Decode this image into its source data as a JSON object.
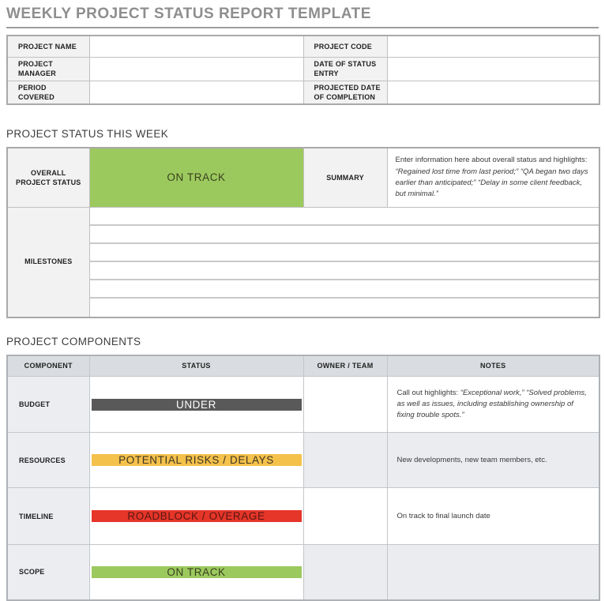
{
  "page": {
    "title": "WEEKLY PROJECT STATUS REPORT TEMPLATE"
  },
  "info": {
    "fields": [
      {
        "label": "PROJECT NAME",
        "value": ""
      },
      {
        "label": "PROJECT CODE",
        "value": ""
      },
      {
        "label": "PROJECT MANAGER",
        "value": ""
      },
      {
        "label": "DATE OF STATUS ENTRY",
        "value": ""
      },
      {
        "label": "PERIOD COVERED",
        "value": ""
      },
      {
        "label": "PROJECTED DATE OF COMPLETION",
        "value": ""
      }
    ]
  },
  "status_section": {
    "heading": "PROJECT STATUS THIS WEEK",
    "overall_label": "OVERALL PROJECT STATUS",
    "overall_status": "ON TRACK",
    "overall_status_bg": "#9cc95e",
    "overall_status_fg": "#38401d",
    "summary_label": "SUMMARY",
    "summary_segments": [
      {
        "text": "Enter information here about overall status and highlights: ",
        "italic": false
      },
      {
        "text": "“Regained lost time from last period;” “QA began two days earlier than anticipated;” “Delay in some client feedback, but minimal.”",
        "italic": true
      }
    ],
    "milestones_label": "MILESTONES",
    "milestone_row_count": 6
  },
  "components_section": {
    "heading": "PROJECT COMPONENTS",
    "columns": [
      "COMPONENT",
      "STATUS",
      "OWNER / TEAM",
      "NOTES"
    ],
    "rows": [
      {
        "component": "BUDGET",
        "status": "UNDER",
        "status_bg": "#595959",
        "status_fg": "#ffffff",
        "owner": "",
        "notes_segments": [
          {
            "text": "Call out highlights: ",
            "italic": false
          },
          {
            "text": "“Exceptional work,” “Solved problems, as well as issues, including establishing ownership of fixing trouble spots.”",
            "italic": true
          }
        ]
      },
      {
        "component": "RESOURCES",
        "status": "POTENTIAL RISKS / DELAYS",
        "status_bg": "#f4c14b",
        "status_fg": "#3e3523",
        "owner": "",
        "notes_segments": [
          {
            "text": "New developments, new team members, etc.",
            "italic": false
          }
        ]
      },
      {
        "component": "TIMELINE",
        "status": "ROADBLOCK / OVERAGE",
        "status_bg": "#e63529",
        "status_fg": "#571712",
        "owner": "",
        "notes_segments": [
          {
            "text": "On track to final launch date",
            "italic": false
          }
        ]
      },
      {
        "component": "SCOPE",
        "status": "ON TRACK",
        "status_bg": "#9cc95e",
        "status_fg": "#38401d",
        "owner": "",
        "notes_segments": []
      }
    ]
  },
  "colors": {
    "title_gray": "#8e8e8e",
    "border_gray": "#c0c0c0",
    "header_row_bg": "#d9dce0",
    "label_bg": "#f2f2f2",
    "shaded_row_bg": "#eaecef"
  }
}
